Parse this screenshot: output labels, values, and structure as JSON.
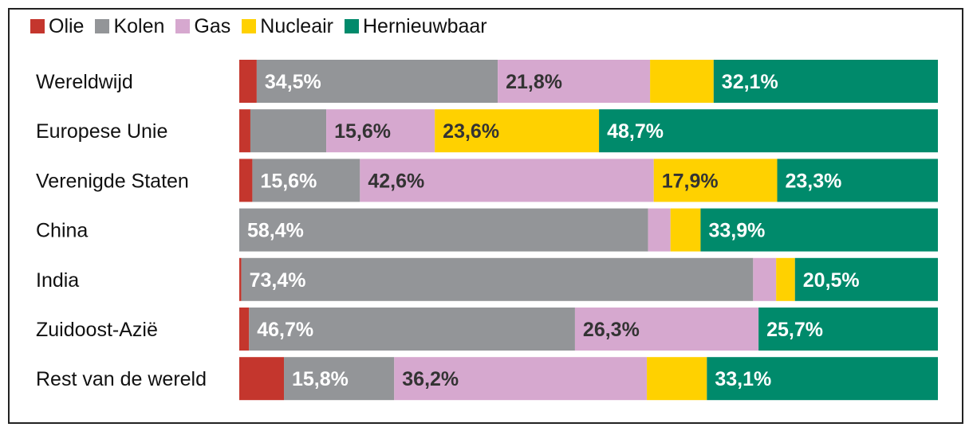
{
  "chart_data": {
    "type": "bar",
    "orientation": "horizontal",
    "stacked": true,
    "normalized_percent": true,
    "legend_position": "top-left",
    "categories": [
      "Wereldwijd",
      "Europese Unie",
      "Verenigde Staten",
      "China",
      "India",
      "Zuidoost-Azië",
      "Rest van de wereld"
    ],
    "series": [
      {
        "name": "Olie",
        "color": "#c4362d",
        "values": [
          2.5,
          1.6,
          1.9,
          0.0,
          0.3,
          1.4,
          6.4
        ]
      },
      {
        "name": "Kolen",
        "color": "#939598",
        "values": [
          34.5,
          10.9,
          15.6,
          58.4,
          73.4,
          46.7,
          15.8
        ]
      },
      {
        "name": "Gas",
        "color": "#d6a8cf",
        "values": [
          21.8,
          15.6,
          42.6,
          3.2,
          3.3,
          26.3,
          36.2
        ]
      },
      {
        "name": "Nucleair",
        "color": "#ffd100",
        "values": [
          9.1,
          23.6,
          17.9,
          4.3,
          2.7,
          0.0,
          8.6
        ]
      },
      {
        "name": "Hernieuwbaar",
        "color": "#008a6b",
        "values": [
          32.1,
          48.7,
          23.3,
          33.9,
          20.5,
          25.7,
          33.1
        ]
      }
    ],
    "data_labels": [
      [
        null,
        "34,5%",
        "21,8%",
        null,
        "32,1%"
      ],
      [
        null,
        null,
        "15,6%",
        "23,6%",
        "48,7%"
      ],
      [
        null,
        "15,6%",
        "42,6%",
        "17,9%",
        "23,3%"
      ],
      [
        null,
        "58,4%",
        null,
        null,
        "33,9%"
      ],
      [
        null,
        "73,4%",
        null,
        null,
        "20,5%"
      ],
      [
        null,
        "46,7%",
        "26,3%",
        null,
        "25,7%"
      ],
      [
        null,
        "15,8%",
        "36,2%",
        null,
        "33,1%"
      ]
    ],
    "data_label_colors": [
      "#ffffff",
      "#ffffff",
      "#333333",
      "#333333",
      "#ffffff"
    ]
  }
}
